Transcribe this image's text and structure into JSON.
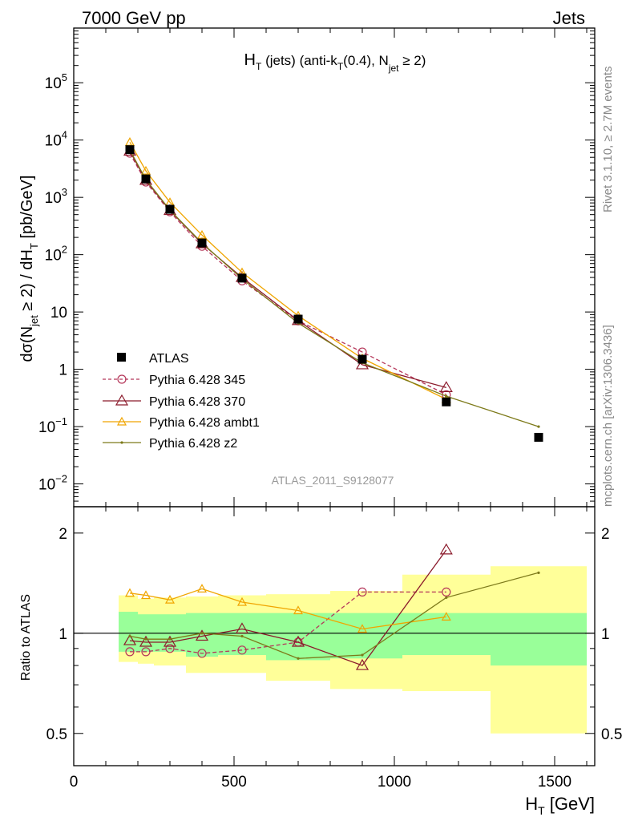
{
  "header": {
    "left": "7000 GeV pp",
    "right": "Jets"
  },
  "side_labels": {
    "top": "Rivet 3.1.10, ≥ 2.7M events",
    "bottom": "mcplots.cern.ch [arXiv:1306.3436]"
  },
  "chart_data": [
    {
      "type": "line",
      "title_parts": {
        "H": "H",
        "sub_T": "T",
        "mid": " (jets) (anti-k",
        "sub_T2": "T",
        "mid2": "(0.4), N",
        "sub_jet": "jet",
        "tail": " ≥ 2)"
      },
      "watermark": "ATLAS_2011_S9128077",
      "ylabel_parts": {
        "pre": "dσ(N",
        "sub_jet": "jet",
        "mid": " ≥ 2) / dH",
        "sub_T": "T",
        "post": " [pb/GeV]"
      },
      "yscale": "log",
      "xlim": [
        0,
        1625
      ],
      "ylim": [
        0.004,
        900000
      ],
      "ytick_labels": [
        {
          "base": "10",
          "exp": "−2",
          "value": 0.01
        },
        {
          "base": "10",
          "exp": "−1",
          "value": 0.1
        },
        {
          "base": "1",
          "exp": "",
          "value": 1
        },
        {
          "base": "10",
          "exp": "",
          "value": 10
        },
        {
          "base": "10",
          "exp": "2",
          "value": 100
        },
        {
          "base": "10",
          "exp": "3",
          "value": 1000
        },
        {
          "base": "10",
          "exp": "4",
          "value": 10000
        },
        {
          "base": "10",
          "exp": "5",
          "value": 100000
        }
      ],
      "legend_position": "lower-left",
      "data": {
        "name": "ATLAS",
        "color": "#000000",
        "x": [
          175,
          225,
          300,
          400,
          525,
          700,
          900,
          1162,
          1450
        ],
        "y": [
          6800,
          2100,
          620,
          160,
          39,
          7.5,
          1.5,
          0.27,
          0.065
        ]
      },
      "series": [
        {
          "name": "Pythia 6.428 345",
          "color": "#b5375a",
          "marker": "circle",
          "dashed": true,
          "x": [
            175,
            225,
            300,
            400,
            525,
            700,
            900,
            1162
          ],
          "y": [
            5900,
            1850,
            560,
            140,
            35,
            7.0,
            2.0,
            0.36
          ]
        },
        {
          "name": "Pythia 6.428 370",
          "color": "#8b1a2b",
          "marker": "triangle",
          "dashed": false,
          "x": [
            175,
            225,
            300,
            400,
            525,
            700,
            900,
            1162
          ],
          "y": [
            6400,
            1980,
            590,
            155,
            40,
            7.1,
            1.2,
            0.48
          ]
        },
        {
          "name": "Pythia 6.428 ambt1",
          "color": "#f0a500",
          "marker": "small-triangle",
          "dashed": false,
          "x": [
            175,
            225,
            300,
            400,
            525,
            700,
            900,
            1162
          ],
          "y": [
            9200,
            2900,
            820,
            220,
            49,
            8.6,
            1.55,
            0.3
          ]
        },
        {
          "name": "Pythia 6.428 z2",
          "color": "#7d7a1a",
          "marker": "dot",
          "dashed": false,
          "x": [
            175,
            225,
            300,
            400,
            525,
            700,
            900,
            1162,
            1450
          ],
          "y": [
            6700,
            2050,
            600,
            160,
            38,
            6.4,
            1.3,
            0.34,
            0.1
          ]
        }
      ]
    },
    {
      "type": "line",
      "ylabel": "Ratio to ATLAS",
      "yscale": "log",
      "xlabel_parts": {
        "H": "H",
        "sub_T": "T",
        "post": " [GeV]"
      },
      "xlim": [
        0,
        1625
      ],
      "ylim": [
        0.4,
        2.4
      ],
      "xtick_labels": [
        {
          "label": "0",
          "value": 0
        },
        {
          "label": "500",
          "value": 500
        },
        {
          "label": "1000",
          "value": 1000
        },
        {
          "label": "1500",
          "value": 1500
        }
      ],
      "ytick_labels": [
        {
          "label": "0.5",
          "value": 0.5
        },
        {
          "label": "1",
          "value": 1
        },
        {
          "label": "2",
          "value": 2
        }
      ],
      "bands": {
        "yellow_color": "#ffff99",
        "green_color": "#99ff99",
        "bins": [
          {
            "x0": 140,
            "x1": 200,
            "y_lo": 0.82,
            "y_hi": 1.3,
            "g_lo": 0.88,
            "g_hi": 1.16
          },
          {
            "x0": 200,
            "x1": 250,
            "y_lo": 0.81,
            "y_hi": 1.27,
            "g_lo": 0.88,
            "g_hi": 1.14
          },
          {
            "x0": 250,
            "x1": 350,
            "y_lo": 0.8,
            "y_hi": 1.28,
            "g_lo": 0.88,
            "g_hi": 1.14
          },
          {
            "x0": 350,
            "x1": 450,
            "y_lo": 0.76,
            "y_hi": 1.29,
            "g_lo": 0.85,
            "g_hi": 1.15
          },
          {
            "x0": 450,
            "x1": 600,
            "y_lo": 0.76,
            "y_hi": 1.3,
            "g_lo": 0.86,
            "g_hi": 1.15
          },
          {
            "x0": 600,
            "x1": 800,
            "y_lo": 0.72,
            "y_hi": 1.31,
            "g_lo": 0.83,
            "g_hi": 1.15
          },
          {
            "x0": 800,
            "x1": 1025,
            "y_lo": 0.68,
            "y_hi": 1.34,
            "g_lo": 0.84,
            "g_hi": 1.15
          },
          {
            "x0": 1025,
            "x1": 1300,
            "y_lo": 0.67,
            "y_hi": 1.5,
            "g_lo": 0.86,
            "g_hi": 1.15
          },
          {
            "x0": 1300,
            "x1": 1600,
            "y_lo": 0.5,
            "y_hi": 1.59,
            "g_lo": 0.8,
            "g_hi": 1.15
          }
        ]
      },
      "series": [
        {
          "name": "Pythia 6.428 345",
          "color": "#b5375a",
          "marker": "circle",
          "dashed": true,
          "x": [
            175,
            225,
            300,
            400,
            525,
            700,
            900,
            1162
          ],
          "y": [
            0.88,
            0.88,
            0.9,
            0.87,
            0.89,
            0.94,
            1.33,
            1.33
          ]
        },
        {
          "name": "Pythia 6.428 370",
          "color": "#8b1a2b",
          "marker": "triangle",
          "dashed": false,
          "x": [
            175,
            225,
            300,
            400,
            525,
            700,
            900,
            1162
          ],
          "y": [
            0.95,
            0.94,
            0.94,
            0.98,
            1.03,
            0.94,
            0.8,
            1.78
          ]
        },
        {
          "name": "Pythia 6.428 ambt1",
          "color": "#f0a500",
          "marker": "small-triangle",
          "dashed": false,
          "x": [
            175,
            225,
            300,
            400,
            525,
            700,
            900,
            1162
          ],
          "y": [
            1.32,
            1.3,
            1.26,
            1.36,
            1.24,
            1.17,
            1.03,
            1.12
          ]
        },
        {
          "name": "Pythia 6.428 z2",
          "color": "#7d7a1a",
          "marker": "dot",
          "dashed": false,
          "x": [
            175,
            225,
            300,
            400,
            525,
            700,
            900,
            1162,
            1450
          ],
          "y": [
            0.98,
            0.96,
            0.96,
            1.0,
            0.98,
            0.84,
            0.86,
            1.28,
            1.52
          ]
        }
      ]
    }
  ]
}
